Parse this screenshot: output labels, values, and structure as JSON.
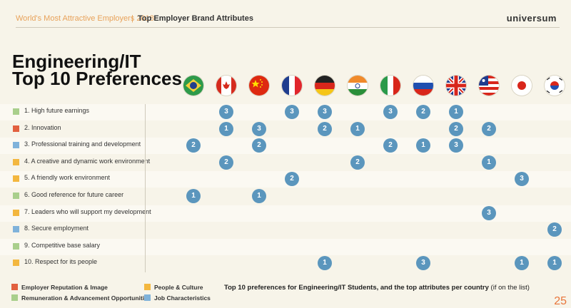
{
  "header": {
    "title_left": "World's Most Attractive Employers 2018",
    "separator": "|",
    "title_right": "Top Employer Brand Attributes",
    "logo": "universum"
  },
  "title": {
    "line1": "Engineering/IT",
    "line2": "Top 10 Preferences"
  },
  "flags": [
    "brazil-flag",
    "canada-flag",
    "china-flag",
    "france-flag",
    "germany-flag",
    "india-flag",
    "italy-flag",
    "russia-flag",
    "uk-flag",
    "usa-flag",
    "japan-flag",
    "south-korea-flag"
  ],
  "colors": {
    "reputation": "#e2603f",
    "people": "#f3b73f",
    "remuneration": "#a9cf8c",
    "job": "#7fb2da",
    "dot": "#5b96bd"
  },
  "rows": [
    {
      "label": "1. High future earnings",
      "category": "remuneration",
      "ranks": [
        null,
        3,
        null,
        3,
        3,
        null,
        3,
        2,
        1,
        null,
        null,
        null
      ]
    },
    {
      "label": "2. Innovation",
      "category": "reputation",
      "ranks": [
        null,
        1,
        3,
        null,
        2,
        1,
        null,
        null,
        2,
        2,
        null,
        null
      ]
    },
    {
      "label": "3. Professional training and development",
      "category": "job",
      "ranks": [
        2,
        null,
        2,
        null,
        null,
        null,
        2,
        1,
        3,
        null,
        null,
        null
      ]
    },
    {
      "label": "4. A creative and dynamic work environment",
      "category": "people",
      "ranks": [
        null,
        2,
        null,
        null,
        null,
        2,
        null,
        null,
        null,
        1,
        null,
        null
      ]
    },
    {
      "label": "5. A friendly work environment",
      "category": "people",
      "ranks": [
        null,
        null,
        null,
        2,
        null,
        null,
        null,
        null,
        null,
        null,
        3,
        null
      ]
    },
    {
      "label": "6. Good reference for future career",
      "category": "remuneration",
      "ranks": [
        1,
        null,
        1,
        null,
        null,
        null,
        null,
        null,
        null,
        null,
        null,
        null
      ]
    },
    {
      "label": "7. Leaders who will support my development",
      "category": "people",
      "ranks": [
        null,
        null,
        null,
        null,
        null,
        null,
        null,
        null,
        null,
        3,
        null,
        null
      ]
    },
    {
      "label": "8. Secure employment",
      "category": "job",
      "ranks": [
        null,
        null,
        null,
        null,
        null,
        null,
        null,
        null,
        null,
        null,
        null,
        2
      ]
    },
    {
      "label": "9. Competitive base salary",
      "category": "remuneration",
      "ranks": [
        null,
        null,
        null,
        null,
        null,
        null,
        null,
        null,
        null,
        null,
        null,
        null
      ]
    },
    {
      "label": "10. Respect for its people",
      "category": "people",
      "ranks": [
        null,
        null,
        null,
        null,
        1,
        null,
        null,
        3,
        null,
        null,
        1,
        1
      ]
    }
  ],
  "legend": [
    {
      "label": "Employer Reputation & Image",
      "category": "reputation"
    },
    {
      "label": "People & Culture",
      "category": "people"
    },
    {
      "label": "Remuneration & Advancement Opportunities",
      "category": "remuneration"
    },
    {
      "label": "Job Characteristics",
      "category": "job"
    }
  ],
  "caption": {
    "bold": "Top 10 preferences for Engineering/IT Students, and the top attributes per country",
    "rest": " (if on the list)"
  },
  "page_number": "25"
}
